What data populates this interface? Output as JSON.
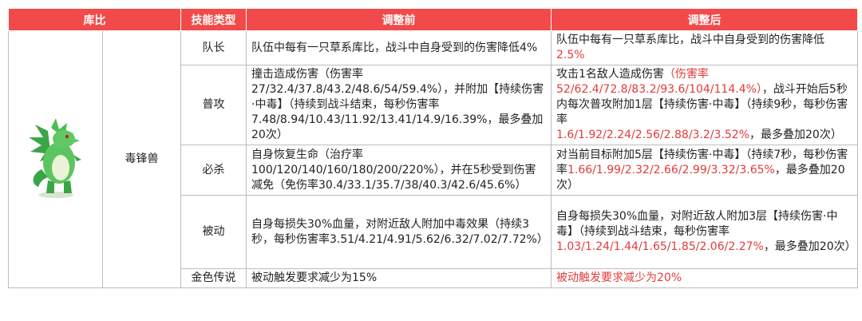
{
  "header": {
    "col1": "库比",
    "col2": "技能类型",
    "col3": "调整前",
    "col4": "调整后"
  },
  "monster": {
    "name": "毒锋兽",
    "icon": "green-dinosaur-icon"
  },
  "rows": [
    {
      "type": "队长",
      "before": "队伍中每有一只草系库比，战斗中自身受到的伤害降低4%",
      "after": [
        {
          "text": "队伍中每有一只草系库比，战斗中自身受到的伤害降低",
          "red": false
        },
        {
          "text": "2.5%",
          "red": true
        }
      ]
    },
    {
      "type": "普攻",
      "before": "撞击造成伤害（伤害率27/32.4/37.8/43.2/48.6/54/59.4%），并附加【持续伤害·中毒】（持续到战斗结束，每秒伤害率7.48/8.94/10.43/11.92/13.41/14.9/16.39%，最多叠加20次）",
      "after": [
        {
          "text": "攻击1名敌人造成伤害",
          "red": false
        },
        {
          "text": "（伤害率52/62.4/72.8/83.2/93.6/104/114.4%）",
          "red": true
        },
        {
          "text": "，战斗开始后5秒内每次普攻附加1层【持续伤害·中毒】（持续9秒，每秒伤害率",
          "red": false
        },
        {
          "text": "1.6/1.92/2.24/2.56/2.88/3.2/3.52%",
          "red": true
        },
        {
          "text": "，最多叠加20次）",
          "red": false
        }
      ]
    },
    {
      "type": "必杀",
      "before": "自身恢复生命（治疗率100/120/140/160/180/200/220%），并在5秒受到伤害减免（免伤率30.4/33.1/35.7/38/40.3/42.6/45.6%）",
      "after": [
        {
          "text": "对当前目标附加5层【持续伤害·中毒】（持续7秒，每秒伤害率",
          "red": false
        },
        {
          "text": "1.66/1.99/2.32/2.66/2.99/3.32/3.65%",
          "red": true
        },
        {
          "text": "，最多叠加20次）",
          "red": false
        }
      ]
    },
    {
      "type": "被动",
      "before": "自身每损失30%血量，对附近敌人附加中毒效果（持续3秒，每秒伤害率3.51/4.21/4.91/5.62/6.32/7.02/7.72%）",
      "after": [
        {
          "text": "自身每损失30%血量，对附近敌人附加3层【持续伤害·中毒】（持续到战斗结束，每秒伤害率",
          "red": false
        },
        {
          "text": "1.03/1.24/1.44/1.65/1.85/2.06/2.27%",
          "red": true
        },
        {
          "text": "，最多叠加20次）",
          "red": false
        }
      ]
    },
    {
      "type": "金色传说",
      "before": "被动触发要求减少为15%",
      "after": [
        {
          "text": "被动触发要求减少为20%",
          "red": true
        }
      ]
    }
  ],
  "colors": {
    "header_bg": "#f24a4a",
    "highlight": "#e23b3b",
    "border": "#bdbdbd"
  }
}
